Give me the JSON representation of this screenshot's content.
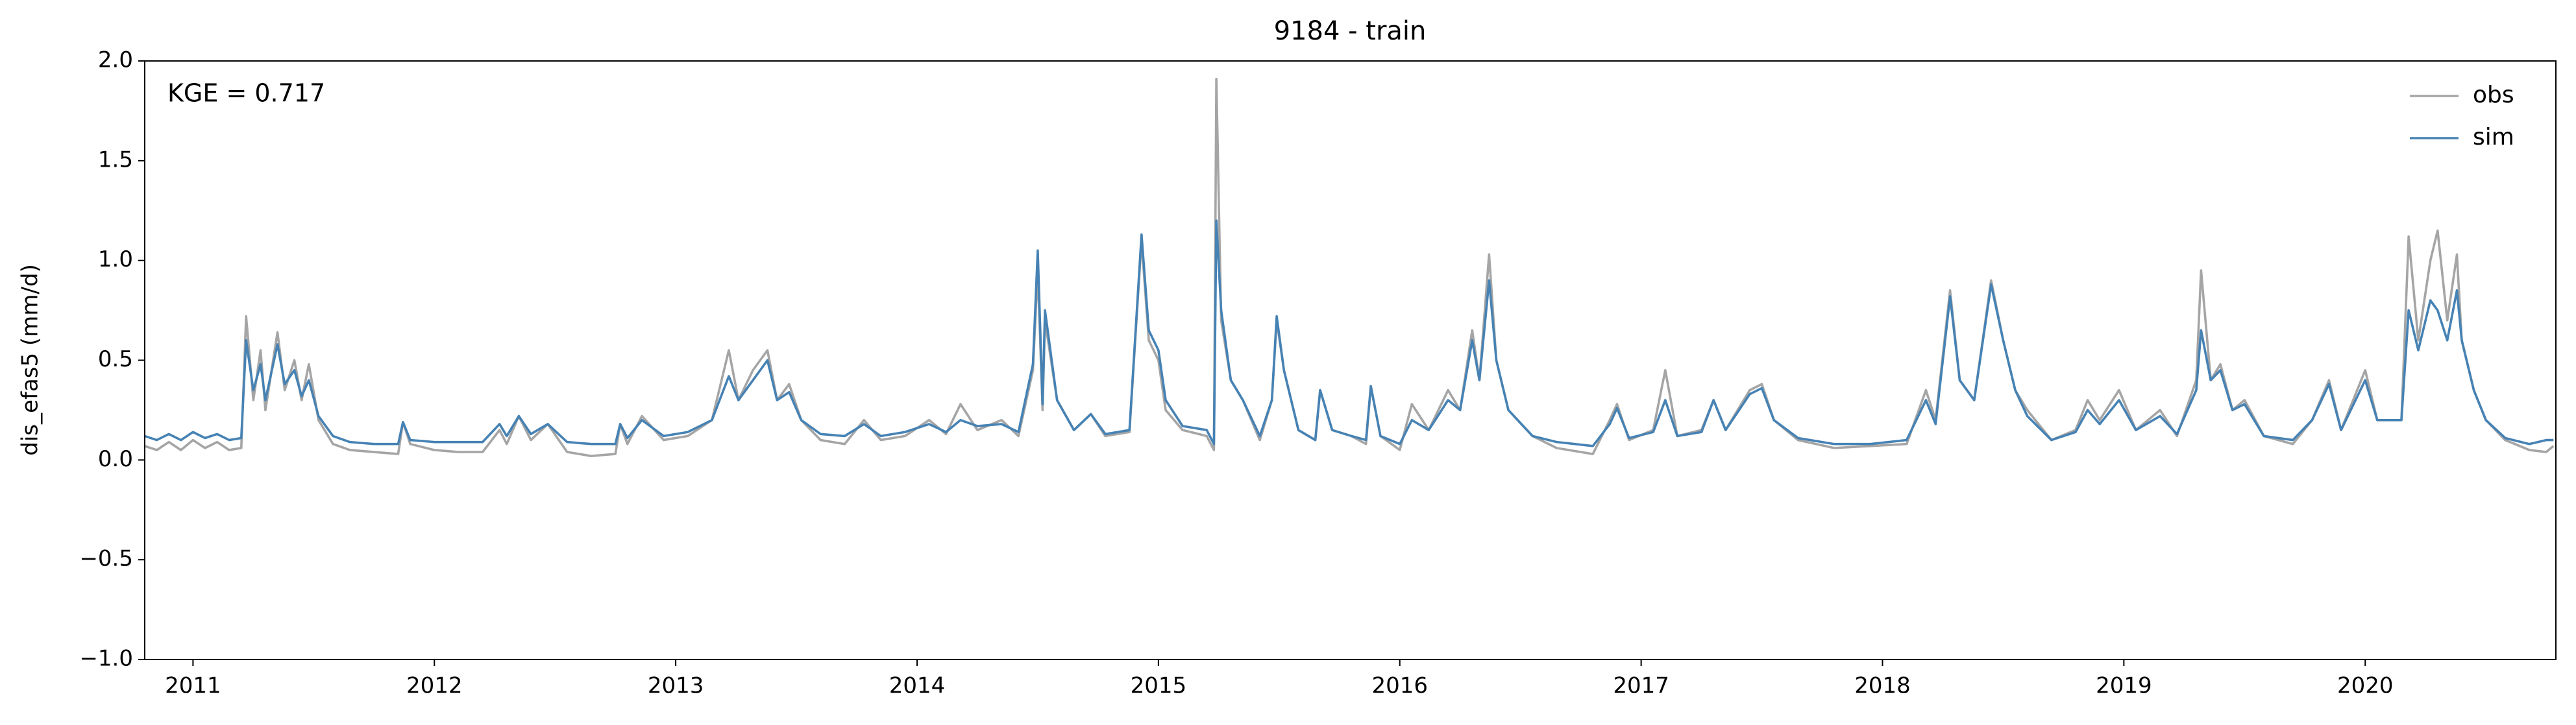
{
  "chart_data": {
    "type": "line",
    "title": "9184 - train",
    "ylabel": "dis_efas5 (mm/d)",
    "annotation": "KGE = 0.717",
    "xlim": [
      2010.8,
      2020.79
    ],
    "xticks": [
      2011,
      2012,
      2013,
      2014,
      2015,
      2016,
      2017,
      2018,
      2019,
      2020
    ],
    "ylim": [
      -1,
      2
    ],
    "yticks": [
      {
        "value": -1,
        "label": "−1.0"
      },
      {
        "value": -0.5,
        "label": "−0.5"
      },
      {
        "value": 0,
        "label": "0.0"
      },
      {
        "value": 0.5,
        "label": "0.5"
      },
      {
        "value": 1,
        "label": "1.0"
      },
      {
        "value": 1.5,
        "label": "1.5"
      },
      {
        "value": 2,
        "label": "2.0"
      }
    ],
    "legend": "upper right",
    "grid": false,
    "x": [
      2010.8,
      2010.85,
      2010.9,
      2010.95,
      2011.0,
      2011.05,
      2011.1,
      2011.15,
      2011.2,
      2011.22,
      2011.25,
      2011.28,
      2011.3,
      2011.35,
      2011.38,
      2011.42,
      2011.45,
      2011.48,
      2011.52,
      2011.58,
      2011.65,
      2011.75,
      2011.85,
      2011.87,
      2011.9,
      2012.0,
      2012.1,
      2012.2,
      2012.27,
      2012.3,
      2012.35,
      2012.4,
      2012.47,
      2012.55,
      2012.65,
      2012.75,
      2012.77,
      2012.8,
      2012.86,
      2012.95,
      2013.05,
      2013.15,
      2013.22,
      2013.26,
      2013.32,
      2013.38,
      2013.42,
      2013.47,
      2013.52,
      2013.6,
      2013.7,
      2013.78,
      2013.85,
      2013.95,
      2014.05,
      2014.12,
      2014.18,
      2014.25,
      2014.35,
      2014.42,
      2014.48,
      2014.5,
      2014.52,
      2014.53,
      2014.58,
      2014.65,
      2014.72,
      2014.78,
      2014.88,
      2014.93,
      2014.96,
      2015.0,
      2015.03,
      2015.1,
      2015.2,
      2015.23,
      2015.24,
      2015.26,
      2015.3,
      2015.35,
      2015.42,
      2015.47,
      2015.49,
      2015.52,
      2015.58,
      2015.65,
      2015.67,
      2015.72,
      2015.8,
      2015.86,
      2015.88,
      2015.92,
      2016.0,
      2016.05,
      2016.12,
      2016.2,
      2016.25,
      2016.3,
      2016.33,
      2016.37,
      2016.4,
      2016.45,
      2016.55,
      2016.65,
      2016.8,
      2016.87,
      2016.9,
      2016.95,
      2017.05,
      2017.1,
      2017.15,
      2017.25,
      2017.3,
      2017.35,
      2017.45,
      2017.5,
      2017.55,
      2017.65,
      2017.8,
      2017.95,
      2018.1,
      2018.18,
      2018.22,
      2018.28,
      2018.32,
      2018.38,
      2018.45,
      2018.5,
      2018.55,
      2018.6,
      2018.7,
      2018.8,
      2018.85,
      2018.9,
      2018.98,
      2019.05,
      2019.15,
      2019.22,
      2019.3,
      2019.32,
      2019.36,
      2019.4,
      2019.45,
      2019.5,
      2019.58,
      2019.7,
      2019.78,
      2019.85,
      2019.9,
      2020.0,
      2020.05,
      2020.15,
      2020.18,
      2020.22,
      2020.27,
      2020.3,
      2020.34,
      2020.38,
      2020.4,
      2020.45,
      2020.5,
      2020.58,
      2020.68,
      2020.75,
      2020.78
    ],
    "series": [
      {
        "name": "obs",
        "color": "#a5a5a5",
        "values": [
          0.07,
          0.05,
          0.09,
          0.05,
          0.1,
          0.06,
          0.09,
          0.05,
          0.06,
          0.72,
          0.3,
          0.55,
          0.25,
          0.64,
          0.35,
          0.5,
          0.3,
          0.48,
          0.2,
          0.08,
          0.05,
          0.04,
          0.03,
          0.19,
          0.08,
          0.05,
          0.04,
          0.04,
          0.15,
          0.08,
          0.22,
          0.1,
          0.18,
          0.04,
          0.02,
          0.03,
          0.18,
          0.08,
          0.22,
          0.1,
          0.12,
          0.2,
          0.55,
          0.3,
          0.45,
          0.55,
          0.3,
          0.38,
          0.2,
          0.1,
          0.08,
          0.2,
          0.1,
          0.12,
          0.2,
          0.13,
          0.28,
          0.15,
          0.2,
          0.12,
          0.45,
          0.95,
          0.25,
          0.7,
          0.3,
          0.15,
          0.23,
          0.12,
          0.14,
          1.1,
          0.6,
          0.5,
          0.25,
          0.15,
          0.12,
          0.05,
          1.91,
          0.7,
          0.4,
          0.3,
          0.1,
          0.3,
          0.7,
          0.45,
          0.15,
          0.1,
          0.35,
          0.15,
          0.12,
          0.08,
          0.37,
          0.12,
          0.05,
          0.28,
          0.15,
          0.35,
          0.25,
          0.65,
          0.4,
          1.03,
          0.5,
          0.25,
          0.12,
          0.06,
          0.03,
          0.2,
          0.28,
          0.1,
          0.15,
          0.45,
          0.12,
          0.15,
          0.3,
          0.15,
          0.35,
          0.38,
          0.2,
          0.1,
          0.06,
          0.07,
          0.08,
          0.35,
          0.2,
          0.85,
          0.4,
          0.3,
          0.9,
          0.6,
          0.35,
          0.25,
          0.1,
          0.15,
          0.3,
          0.2,
          0.35,
          0.15,
          0.25,
          0.12,
          0.4,
          0.95,
          0.4,
          0.48,
          0.25,
          0.3,
          0.12,
          0.08,
          0.2,
          0.4,
          0.15,
          0.45,
          0.2,
          0.2,
          1.12,
          0.6,
          1.0,
          1.15,
          0.7,
          1.03,
          0.6,
          0.35,
          0.2,
          0.1,
          0.05,
          0.04,
          0.07
        ]
      },
      {
        "name": "sim",
        "color": "#4682b4",
        "values": [
          0.12,
          0.1,
          0.13,
          0.1,
          0.14,
          0.11,
          0.13,
          0.1,
          0.11,
          0.6,
          0.35,
          0.48,
          0.3,
          0.58,
          0.38,
          0.45,
          0.32,
          0.4,
          0.22,
          0.12,
          0.09,
          0.08,
          0.08,
          0.19,
          0.1,
          0.09,
          0.09,
          0.09,
          0.18,
          0.12,
          0.22,
          0.13,
          0.18,
          0.09,
          0.08,
          0.08,
          0.18,
          0.11,
          0.2,
          0.12,
          0.14,
          0.2,
          0.42,
          0.3,
          0.4,
          0.5,
          0.3,
          0.34,
          0.2,
          0.13,
          0.12,
          0.18,
          0.12,
          0.14,
          0.18,
          0.14,
          0.2,
          0.17,
          0.18,
          0.14,
          0.48,
          1.05,
          0.28,
          0.75,
          0.3,
          0.15,
          0.23,
          0.13,
          0.15,
          1.13,
          0.65,
          0.55,
          0.3,
          0.17,
          0.15,
          0.08,
          1.2,
          0.75,
          0.4,
          0.3,
          0.12,
          0.3,
          0.72,
          0.45,
          0.15,
          0.1,
          0.35,
          0.15,
          0.12,
          0.1,
          0.37,
          0.12,
          0.08,
          0.2,
          0.15,
          0.3,
          0.25,
          0.6,
          0.4,
          0.9,
          0.5,
          0.25,
          0.12,
          0.09,
          0.07,
          0.18,
          0.26,
          0.11,
          0.14,
          0.3,
          0.12,
          0.14,
          0.3,
          0.15,
          0.33,
          0.36,
          0.2,
          0.11,
          0.08,
          0.08,
          0.1,
          0.3,
          0.18,
          0.82,
          0.4,
          0.3,
          0.88,
          0.6,
          0.35,
          0.22,
          0.1,
          0.14,
          0.25,
          0.18,
          0.3,
          0.15,
          0.22,
          0.13,
          0.35,
          0.65,
          0.4,
          0.45,
          0.25,
          0.28,
          0.12,
          0.1,
          0.2,
          0.38,
          0.15,
          0.4,
          0.2,
          0.2,
          0.75,
          0.55,
          0.8,
          0.75,
          0.6,
          0.85,
          0.6,
          0.35,
          0.2,
          0.11,
          0.08,
          0.1,
          0.1
        ]
      }
    ]
  }
}
